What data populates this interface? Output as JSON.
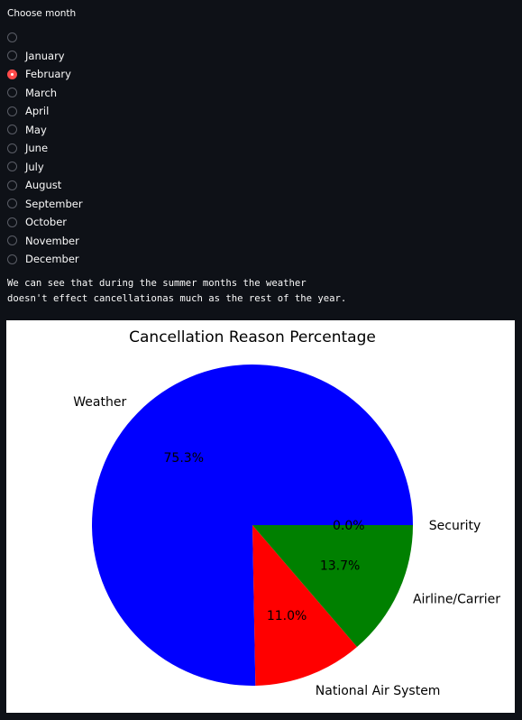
{
  "month_selector": {
    "label": "Choose month",
    "selected_index": 2,
    "options": [
      "",
      "January",
      "February",
      "March",
      "April",
      "May",
      "June",
      "July",
      "August",
      "September",
      "October",
      "November",
      "December"
    ]
  },
  "note": {
    "line1": "We can see that during the summer months the weather",
    "line2": "doesn't effect cancellationas much as the rest of the year."
  },
  "colors": {
    "accent": "#ff4b4b",
    "background": "#0e1117"
  },
  "chart_data": {
    "type": "pie",
    "title": "Cancellation Reason Percentage",
    "start_angle_deg": 0,
    "counterclockwise": true,
    "slices": [
      {
        "label": "Security",
        "value": 0.0,
        "pct_label": "0.0%",
        "color": "#0000ff"
      },
      {
        "label": "Weather",
        "value": 75.3,
        "pct_label": "75.3%",
        "color": "#0000ff"
      },
      {
        "label": "National Air System",
        "value": 11.0,
        "pct_label": "11.0%",
        "color": "#ff0000"
      },
      {
        "label": "Airline/Carrier",
        "value": 13.7,
        "pct_label": "13.7%",
        "color": "#008000"
      }
    ]
  }
}
